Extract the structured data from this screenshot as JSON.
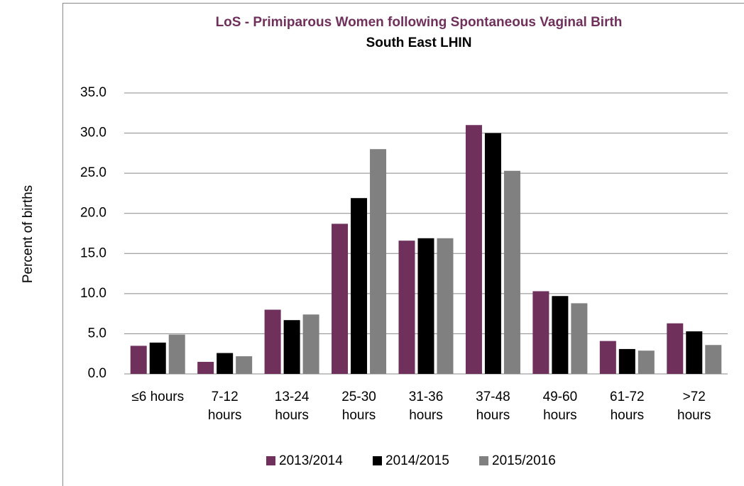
{
  "chart_data": {
    "type": "bar",
    "title": "LoS - Primiparous Women following Spontaneous Vaginal Birth",
    "subtitle": "South East LHIN",
    "y_label": "Percent of births",
    "categories": [
      "≤6 hours",
      "7-12\nhours",
      "13-24\nhours",
      "25-30\nhours",
      "31-36\nhours",
      "37-48\nhours",
      "49-60\nhours",
      "61-72\nhours",
      ">72\nhours"
    ],
    "series": [
      {
        "name": "2013/2014",
        "color": "#70305c",
        "values": [
          3.5,
          1.5,
          8.0,
          18.7,
          16.6,
          31.0,
          10.3,
          4.1,
          6.3
        ]
      },
      {
        "name": "2014/2015",
        "color": "#000000",
        "values": [
          3.9,
          2.6,
          6.7,
          21.9,
          16.9,
          30.0,
          9.7,
          3.1,
          5.3
        ]
      },
      {
        "name": "2015/2016",
        "color": "#808080",
        "values": [
          4.9,
          2.2,
          7.4,
          28.0,
          16.9,
          25.3,
          8.8,
          2.9,
          3.6
        ]
      }
    ],
    "ylim": [
      0,
      35
    ],
    "yticks": [
      {
        "value": 0,
        "label": "0.0"
      },
      {
        "value": 5,
        "label": "5.0"
      },
      {
        "value": 10,
        "label": "10.0"
      },
      {
        "value": 15,
        "label": "15.0"
      },
      {
        "value": 20,
        "label": "20.0"
      },
      {
        "value": 25,
        "label": "25.0"
      },
      {
        "value": 30,
        "label": "30.0"
      },
      {
        "value": 35,
        "label": "35.0"
      }
    ],
    "grid": true,
    "legend": "bottom"
  }
}
